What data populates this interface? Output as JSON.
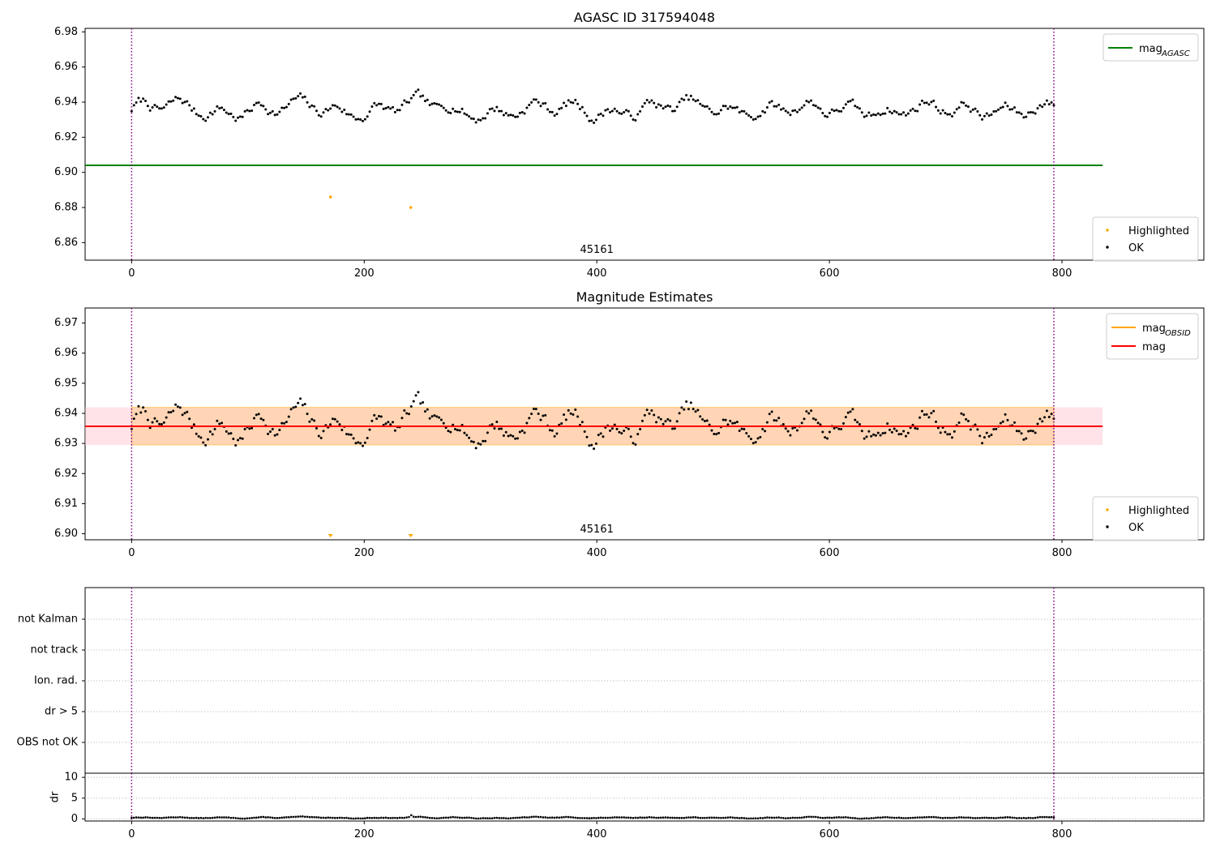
{
  "chart_data": [
    {
      "type": "scatter",
      "title": "AGASC ID 317594048",
      "annotation": "45161",
      "xlim": [
        -40,
        922
      ],
      "ylim": [
        6.85,
        6.982
      ],
      "xticks": [
        0,
        200,
        400,
        600,
        800
      ],
      "yticks": [
        6.86,
        6.88,
        6.9,
        6.92,
        6.94,
        6.96,
        6.98
      ],
      "ytick_labels": [
        "6.86",
        "6.88",
        "6.90",
        "6.92",
        "6.94",
        "6.96",
        "6.98"
      ],
      "vlines": [
        0,
        793
      ],
      "mag_agasc": 6.904,
      "mag_agasc_span": [
        -40,
        835
      ],
      "ok_series": {
        "x_start": 0,
        "x_end": 793,
        "n": 400,
        "mean": 6.936,
        "amplitude": 0.0085
      },
      "highlighted": [
        {
          "x": 171,
          "y": 6.886
        },
        {
          "x": 240,
          "y": 6.88
        }
      ],
      "legend_lines": [
        {
          "label": "mag",
          "sub": "AGASC",
          "color": "#008000"
        }
      ],
      "legend_points": [
        {
          "label": "Highlighted",
          "color": "#ffa500"
        },
        {
          "label": "OK",
          "color": "#000000"
        }
      ]
    },
    {
      "type": "scatter",
      "title": "Magnitude Estimates",
      "annotation": "45161",
      "xlim": [
        -40,
        922
      ],
      "ylim": [
        6.898,
        6.975
      ],
      "xticks": [
        0,
        200,
        400,
        600,
        800
      ],
      "yticks": [
        6.9,
        6.91,
        6.92,
        6.93,
        6.94,
        6.95,
        6.96,
        6.97
      ],
      "ytick_labels": [
        "6.90",
        "6.91",
        "6.92",
        "6.93",
        "6.94",
        "6.95",
        "6.96",
        "6.97"
      ],
      "vlines": [
        0,
        793
      ],
      "mag": 6.9357,
      "mag_band": [
        6.9295,
        6.942
      ],
      "band_span": [
        -40,
        835
      ],
      "obsid_band_span": [
        0,
        793
      ],
      "ok_series": {
        "x_start": 0,
        "x_end": 793,
        "n": 400,
        "mean": 6.936,
        "amplitude": 0.0085
      },
      "highlighted_markers": [
        {
          "x": 171
        },
        {
          "x": 240
        }
      ],
      "legend_lines": [
        {
          "label": "mag",
          "sub": "OBSID",
          "color": "#ffa500"
        },
        {
          "label": "mag",
          "sub": "",
          "color": "#ff0000"
        }
      ],
      "legend_points": [
        {
          "label": "Highlighted",
          "color": "#ffa500"
        },
        {
          "label": "OK",
          "color": "#000000"
        }
      ]
    },
    {
      "type": "scatter",
      "title": "",
      "xlim": [
        -40,
        922
      ],
      "flags": [
        "not Kalman",
        "not track",
        "Ion. rad.",
        "dr > 5",
        "OBS not OK"
      ],
      "vlines": [
        0,
        793
      ]
    },
    {
      "type": "scatter",
      "title": "",
      "ylabel": "dr",
      "xlim": [
        -40,
        922
      ],
      "ylim": [
        -0.5,
        11
      ],
      "xticks": [
        0,
        200,
        400,
        600,
        800
      ],
      "yticks": [
        0,
        5,
        10
      ],
      "vlines": [
        0,
        793
      ],
      "dr_series": {
        "x_start": 0,
        "x_end": 793,
        "n": 400,
        "mean": 0.3,
        "amplitude": 0.25
      }
    }
  ],
  "colors": {
    "ok": "#000000",
    "highlighted": "#ffa500",
    "agasc_line": "#008000",
    "mag_line": "#ff0000",
    "obsid_band": "#ffa500",
    "mag_band": "#ffc0cb",
    "vline": "#800080",
    "grid": "#b0b0b0"
  }
}
